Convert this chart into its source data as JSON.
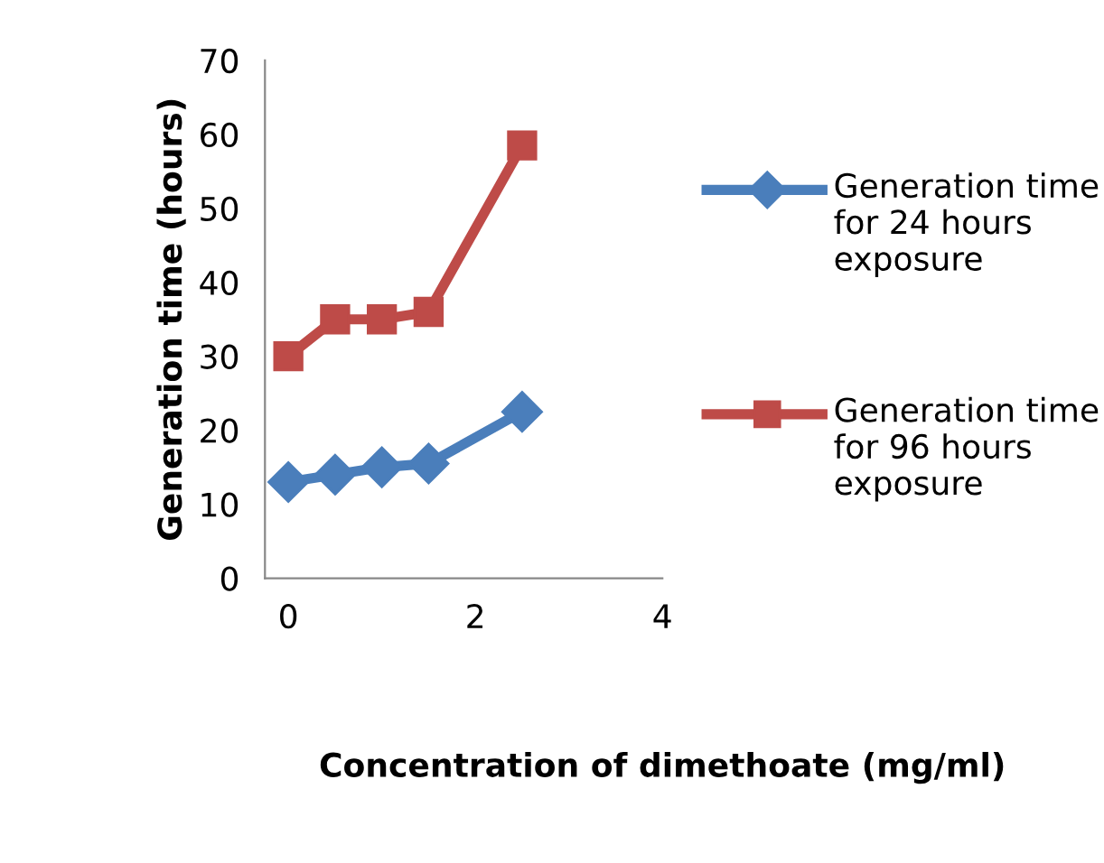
{
  "chart_data": {
    "type": "line",
    "xlabel": "Concentration of dimethoate (mg/ml)",
    "ylabel": "Generation time (hours)",
    "x": [
      0,
      0.5,
      1,
      1.5,
      2.5
    ],
    "series": [
      {
        "name": "Generation time for 24 hours exposure",
        "color": "#4a7ebb",
        "marker": "diamond",
        "values": [
          13,
          14,
          15,
          15.5,
          22.5
        ]
      },
      {
        "name": "Generation time for 96 hours exposure",
        "color": "#be4b48",
        "marker": "square",
        "values": [
          30,
          35,
          35,
          36,
          58.5
        ]
      }
    ],
    "xlim": [
      -0.25,
      4
    ],
    "xticks": [
      0,
      2,
      4
    ],
    "ylim": [
      0,
      70
    ],
    "yticks": [
      0,
      10,
      20,
      30,
      40,
      50,
      60,
      70
    ],
    "grid": false,
    "legend": "right",
    "line_style": "solid"
  }
}
